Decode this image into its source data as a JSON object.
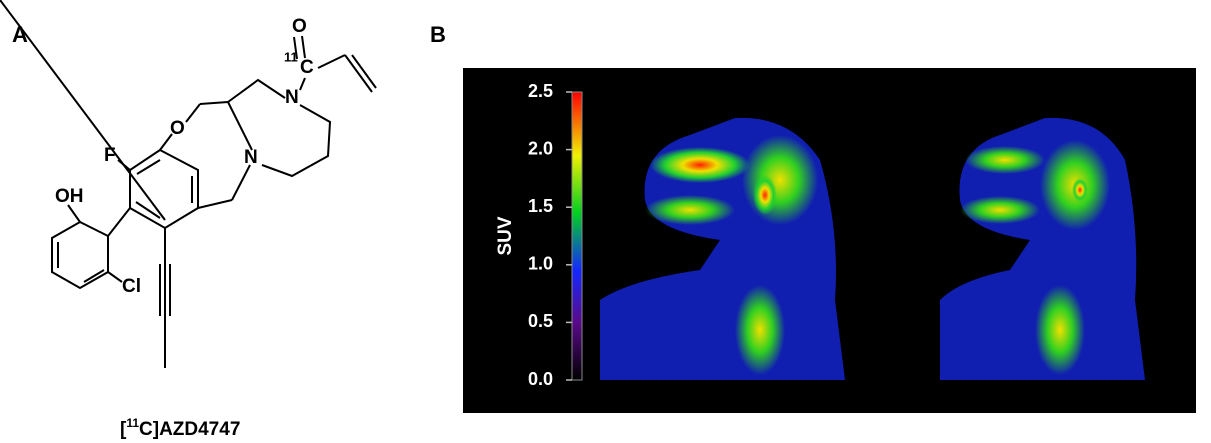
{
  "panel_a": {
    "label": "A",
    "atoms": [
      {
        "symbol": "O"
      },
      {
        "isotope": "11",
        "symbol": "C"
      },
      {
        "symbol": "N"
      },
      {
        "symbol": "N"
      },
      {
        "symbol": "O"
      },
      {
        "symbol": "F"
      },
      {
        "symbol": "OH"
      },
      {
        "symbol": "Cl"
      }
    ],
    "compound": {
      "open": "[",
      "isotope": "11",
      "rest": "C]AZD4747"
    }
  },
  "panel_b": {
    "label": "B",
    "colorbar": {
      "title": "SUV",
      "range": [
        0,
        2.5
      ],
      "ticks": [
        {
          "value": 0,
          "label": "0.0"
        },
        0.5,
        {
          "value": 1,
          "label": "1.0"
        },
        1.5,
        {
          "value": 2,
          "label": "2.0"
        },
        2.5
      ]
    }
  }
}
